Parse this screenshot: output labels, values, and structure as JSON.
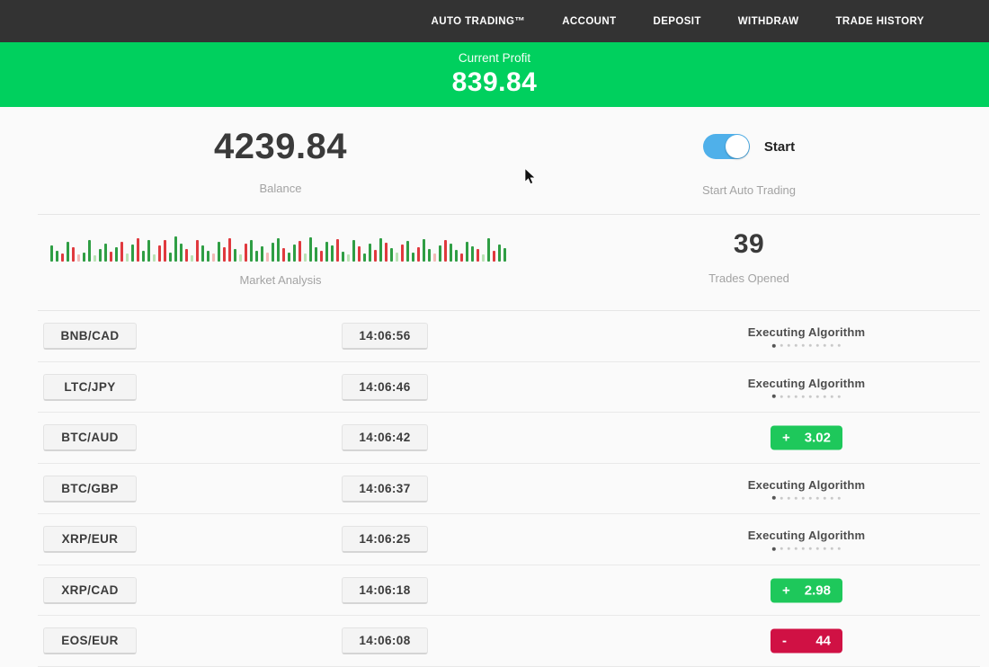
{
  "nav": {
    "items": [
      "AUTO TRADING™",
      "ACCOUNT",
      "DEPOSIT",
      "WITHDRAW",
      "TRADE HISTORY"
    ]
  },
  "banner": {
    "label": "Current Profit",
    "value": "839.84"
  },
  "account": {
    "balance": "4239.84",
    "balance_label": "Balance",
    "toggle_label": "Start",
    "toggle_caption": "Start Auto Trading",
    "toggle_state": "on"
  },
  "market": {
    "label": "Market Analysis",
    "trades_opened": "39",
    "trades_label": "Trades Opened",
    "bars": [
      [
        "G",
        18
      ],
      [
        "G",
        12
      ],
      [
        "R",
        9
      ],
      [
        "G",
        22
      ],
      [
        "R",
        16
      ],
      [
        "r",
        8
      ],
      [
        "G",
        10
      ],
      [
        "G",
        24
      ],
      [
        "g",
        7
      ],
      [
        "G",
        14
      ],
      [
        "G",
        20
      ],
      [
        "R",
        11
      ],
      [
        "G",
        16
      ],
      [
        "R",
        22
      ],
      [
        "g",
        9
      ],
      [
        "G",
        19
      ],
      [
        "R",
        26
      ],
      [
        "G",
        12
      ],
      [
        "G",
        24
      ],
      [
        "g",
        8
      ],
      [
        "R",
        18
      ],
      [
        "R",
        24
      ],
      [
        "G",
        10
      ],
      [
        "G",
        28
      ],
      [
        "G",
        20
      ],
      [
        "R",
        14
      ],
      [
        "g",
        7
      ],
      [
        "R",
        24
      ],
      [
        "G",
        18
      ],
      [
        "G",
        12
      ],
      [
        "r",
        9
      ],
      [
        "G",
        22
      ],
      [
        "R",
        16
      ],
      [
        "R",
        26
      ],
      [
        "G",
        14
      ],
      [
        "g",
        8
      ],
      [
        "R",
        20
      ],
      [
        "G",
        24
      ],
      [
        "G",
        12
      ],
      [
        "G",
        17
      ],
      [
        "r",
        10
      ],
      [
        "G",
        21
      ],
      [
        "G",
        26
      ],
      [
        "R",
        15
      ],
      [
        "G",
        10
      ],
      [
        "G",
        19
      ],
      [
        "R",
        23
      ],
      [
        "g",
        9
      ],
      [
        "G",
        27
      ],
      [
        "G",
        16
      ],
      [
        "R",
        12
      ],
      [
        "G",
        22
      ],
      [
        "G",
        18
      ],
      [
        "R",
        25
      ],
      [
        "G",
        11
      ],
      [
        "g",
        8
      ],
      [
        "G",
        24
      ],
      [
        "R",
        17
      ],
      [
        "G",
        9
      ],
      [
        "G",
        20
      ],
      [
        "R",
        13
      ],
      [
        "G",
        26
      ],
      [
        "R",
        21
      ],
      [
        "G",
        15
      ],
      [
        "g",
        10
      ],
      [
        "R",
        19
      ],
      [
        "G",
        23
      ],
      [
        "G",
        10
      ],
      [
        "R",
        16
      ],
      [
        "G",
        25
      ],
      [
        "G",
        14
      ],
      [
        "r",
        9
      ],
      [
        "G",
        18
      ],
      [
        "R",
        24
      ],
      [
        "G",
        20
      ],
      [
        "G",
        13
      ],
      [
        "R",
        9
      ],
      [
        "G",
        22
      ],
      [
        "G",
        17
      ],
      [
        "R",
        14
      ],
      [
        "g",
        8
      ],
      [
        "G",
        26
      ],
      [
        "R",
        12
      ],
      [
        "G",
        19
      ],
      [
        "G",
        15
      ]
    ]
  },
  "trades": {
    "executing_dots": 10,
    "rows": [
      {
        "pair": "BNB/CAD",
        "time": "14:06:56",
        "status": {
          "type": "executing",
          "label": "Executing Algorithm"
        }
      },
      {
        "pair": "LTC/JPY",
        "time": "14:06:46",
        "status": {
          "type": "executing",
          "label": "Executing Algorithm"
        }
      },
      {
        "pair": "BTC/AUD",
        "time": "14:06:42",
        "status": {
          "type": "profit",
          "sign": "+",
          "value": "3.02"
        }
      },
      {
        "pair": "BTC/GBP",
        "time": "14:06:37",
        "status": {
          "type": "executing",
          "label": "Executing Algorithm"
        }
      },
      {
        "pair": "XRP/EUR",
        "time": "14:06:25",
        "status": {
          "type": "executing",
          "label": "Executing Algorithm"
        }
      },
      {
        "pair": "XRP/CAD",
        "time": "14:06:18",
        "status": {
          "type": "profit",
          "sign": "+",
          "value": "2.98"
        }
      },
      {
        "pair": "EOS/EUR",
        "time": "14:06:08",
        "status": {
          "type": "loss",
          "sign": "-",
          "value": "44"
        }
      }
    ]
  },
  "colors": {
    "navbar_bg": "#333333",
    "banner_green": "#00d05e",
    "profit_green": "#1ec85b",
    "loss_red": "#d01144",
    "toggle_blue": "#4fb0ea",
    "bar_green": "#2f9e44",
    "bar_red": "#e0393e",
    "page_bg": "#fafafa"
  }
}
